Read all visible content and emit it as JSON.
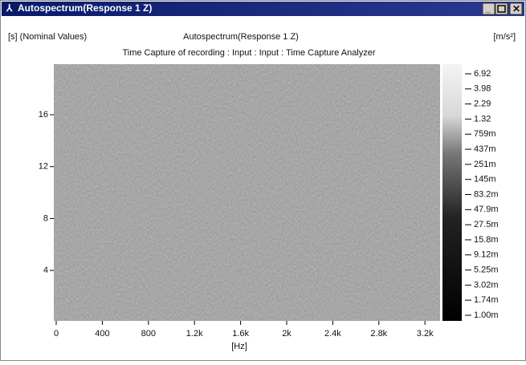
{
  "window": {
    "title": "Autospectrum(Response 1 Z)"
  },
  "plot": {
    "header_left": "[s] (Nominal Values)",
    "header_center": "Autospectrum(Response 1 Z)",
    "header_right": "[m/s²]",
    "subtitle": "Time Capture of recording : Input : Input : Time Capture Analyzer",
    "x_axis_label": "[Hz]",
    "x_tick_labels": [
      "0",
      "400",
      "800",
      "1.2k",
      "1.6k",
      "2k",
      "2.4k",
      "2.8k",
      "3.2k"
    ],
    "y_tick_labels": [
      "16",
      "12",
      "8",
      "4"
    ],
    "color_scale_labels": [
      "6.92",
      "3.98",
      "2.29",
      "1.32",
      "759m",
      "437m",
      "251m",
      "145m",
      "83.2m",
      "47.9m",
      "27.5m",
      "15.8m",
      "9.12m",
      "5.25m",
      "3.02m",
      "1.74m",
      "1.00m"
    ]
  }
}
